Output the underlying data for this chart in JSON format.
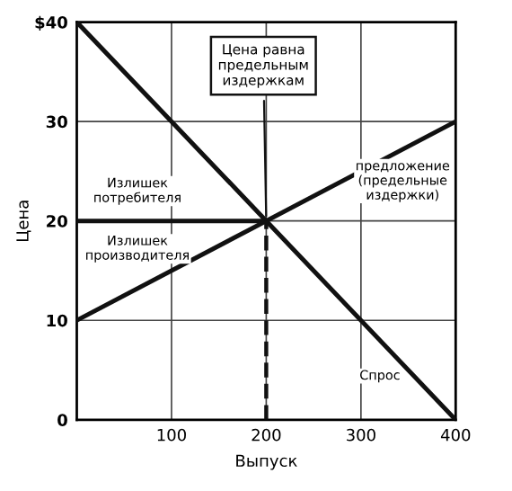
{
  "chart_data": {
    "type": "line",
    "xlabel": "Выпуск",
    "ylabel": "Цена",
    "series": [
      {
        "color": "#111111",
        "x": [
          0,
          400
        ],
        "values": [
          40,
          0
        ]
      },
      {
        "color": "#111111",
        "x": [
          0,
          400
        ],
        "values": [
          10,
          30
        ]
      },
      {
        "color": "#111111",
        "x": [
          0,
          200
        ],
        "values": [
          20,
          20
        ]
      },
      {
        "color": "#111111",
        "x": [
          200,
          200
        ],
        "values": [
          0,
          20
        ],
        "line_style": "dashed"
      }
    ],
    "annotations": [
      {
        "text": "Цена равна\nпредельным\nиздержкам",
        "x": 200,
        "y": 20
      },
      "Излишек\nпотребителя",
      "Излишек\nпроизводителя",
      "предложение\n(предельные\nиздержки)",
      "Спрос"
    ],
    "xlim": [
      0,
      400
    ],
    "ylim": [
      0,
      40
    ],
    "xticks": [
      100,
      200,
      300,
      400
    ],
    "yticks": [
      0,
      10,
      20,
      30,
      {
        "value": 40,
        "label": "$40"
      }
    ],
    "grid": true,
    "line_style": "solid",
    "marker": "none",
    "legend": false
  }
}
